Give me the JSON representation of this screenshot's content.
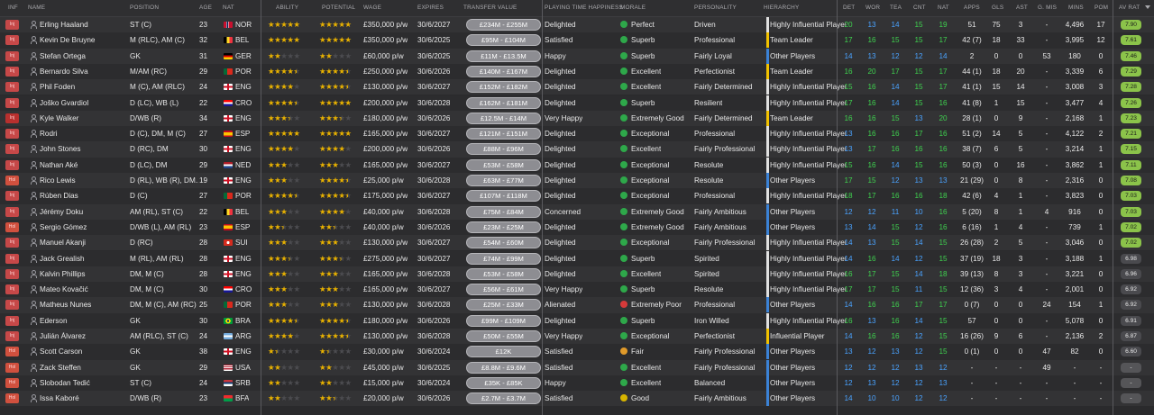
{
  "headers": {
    "inf": "INF",
    "name": "NAME",
    "position": "POSITION",
    "age": "AGE",
    "nat": "NAT",
    "ability": "ABILITY",
    "potential": "POTENTIAL",
    "wage": "WAGE",
    "expires": "EXPIRES",
    "transfer_value": "TRANSFER VALUE",
    "playing_time": "PLAYING TIME HAPPINESS",
    "morale": "MORALE",
    "personality": "PERSONALITY",
    "hierarchy": "HIERARCHY",
    "det": "DET",
    "wor": "WOR",
    "tea": "TEA",
    "cnt": "CNT",
    "nat2": "NAT",
    "apps": "APPS",
    "gls": "GLS",
    "ast": "AST",
    "gmis": "G. MIS",
    "mins": "MINS",
    "pom": "POM",
    "avrat": "AV RAT"
  },
  "colors": {
    "green_rating": "#8bc34a",
    "blue_stat": "#4aa3ff",
    "green_stat": "#3fd24f",
    "gold_star": "#e9b200",
    "bar_white": "#e0e0e0",
    "bar_yellow": "#f2c200",
    "bar_blue": "#3b82d6"
  },
  "players": [
    {
      "inf": "Inj",
      "name": "Erling Haaland",
      "position": "ST (C)",
      "age": "23",
      "nat": "NOR",
      "ability": 5,
      "potential": 5,
      "wage": "£350,000 p/w",
      "expires": "30/6/2027",
      "value": "£234M - £255M",
      "happiness": "Delighted",
      "morale": "Perfect",
      "personality": "Driven",
      "hierarchy": "Highly Influential Player",
      "hcolor": "white",
      "det": "20",
      "wor": "13",
      "tea": "14",
      "cnt": "15",
      "nat2": "19",
      "apps": "51",
      "gls": "75",
      "ast": "3",
      "gmis": "-",
      "mins": "4,496",
      "pom": "17",
      "avrat": "7.90"
    },
    {
      "inf": "Inj",
      "name": "Kevin De Bruyne",
      "position": "M (RLC), AM (C)",
      "age": "32",
      "nat": "BEL",
      "ability": 5,
      "potential": 5,
      "wage": "£350,000 p/w",
      "expires": "30/6/2025",
      "value": "£95M - £104M",
      "happiness": "Satisfied",
      "morale": "Superb",
      "personality": "Professional",
      "hierarchy": "Team Leader",
      "hcolor": "yellow",
      "det": "17",
      "wor": "16",
      "tea": "15",
      "cnt": "15",
      "nat2": "17",
      "apps": "42 (7)",
      "gls": "18",
      "ast": "33",
      "gmis": "-",
      "mins": "3,995",
      "pom": "12",
      "avrat": "7.61"
    },
    {
      "inf": "Inj",
      "name": "Stefan Ortega",
      "position": "GK",
      "age": "31",
      "nat": "GER",
      "ability": 2,
      "potential": 2,
      "wage": "£60,000 p/w",
      "expires": "30/6/2025",
      "value": "£11M - £13.5M",
      "happiness": "Happy",
      "morale": "Superb",
      "personality": "Fairly Loyal",
      "hierarchy": "Other Players",
      "hcolor": "blue",
      "det": "14",
      "wor": "13",
      "tea": "12",
      "cnt": "12",
      "nat2": "14",
      "apps": "2",
      "gls": "0",
      "ast": "0",
      "gmis": "53",
      "mins": "180",
      "pom": "0",
      "avrat": "7.46"
    },
    {
      "inf": "Inj",
      "name": "Bernardo Silva",
      "position": "M/AM (RC)",
      "age": "29",
      "nat": "POR",
      "ability": 4.5,
      "potential": 4.5,
      "wage": "£250,000 p/w",
      "expires": "30/6/2026",
      "value": "£140M - £167M",
      "happiness": "Delighted",
      "morale": "Excellent",
      "personality": "Perfectionist",
      "hierarchy": "Team Leader",
      "hcolor": "yellow",
      "det": "16",
      "wor": "20",
      "tea": "17",
      "cnt": "15",
      "nat2": "17",
      "apps": "44 (1)",
      "gls": "18",
      "ast": "20",
      "gmis": "-",
      "mins": "3,339",
      "pom": "6",
      "avrat": "7.29"
    },
    {
      "inf": "Inj",
      "name": "Phil Foden",
      "position": "M (C), AM (RLC)",
      "age": "24",
      "nat": "ENG",
      "ability": 4,
      "potential": 4.5,
      "wage": "£130,000 p/w",
      "expires": "30/6/2027",
      "value": "£152M - £182M",
      "happiness": "Delighted",
      "morale": "Excellent",
      "personality": "Fairly Determined",
      "hierarchy": "Highly Influential Player",
      "hcolor": "white",
      "det": "15",
      "wor": "16",
      "tea": "14",
      "cnt": "15",
      "nat2": "17",
      "apps": "41 (1)",
      "gls": "15",
      "ast": "14",
      "gmis": "-",
      "mins": "3,008",
      "pom": "3",
      "avrat": "7.28"
    },
    {
      "inf": "Inj",
      "name": "Joško Gvardiol",
      "position": "D (LC), WB (L)",
      "age": "22",
      "nat": "CRO",
      "ability": 4.5,
      "potential": 5,
      "wage": "£200,000 p/w",
      "expires": "30/6/2028",
      "value": "£162M - £181M",
      "happiness": "Delighted",
      "morale": "Superb",
      "personality": "Resilient",
      "hierarchy": "Highly Influential Player",
      "hcolor": "white",
      "det": "17",
      "wor": "16",
      "tea": "14",
      "cnt": "15",
      "nat2": "16",
      "apps": "41 (8)",
      "gls": "1",
      "ast": "15",
      "gmis": "-",
      "mins": "3,477",
      "pom": "4",
      "avrat": "7.26"
    },
    {
      "inf": "Inj",
      "name": "Kyle Walker",
      "position": "D/WB (R)",
      "age": "34",
      "nat": "ENG",
      "ability": 3.5,
      "potential": 3.5,
      "wage": "£180,000 p/w",
      "expires": "30/6/2026",
      "value": "£12.5M - £14M",
      "happiness": "Very Happy",
      "morale": "Extremely Good",
      "personality": "Fairly Determined",
      "hierarchy": "Team Leader",
      "hcolor": "yellow",
      "det": "16",
      "wor": "16",
      "tea": "15",
      "cnt": "13",
      "nat2": "20",
      "apps": "28 (1)",
      "gls": "0",
      "ast": "9",
      "gmis": "-",
      "mins": "2,168",
      "pom": "1",
      "avrat": "7.23"
    },
    {
      "inf": "Inj",
      "name": "Rodri",
      "position": "D (C), DM, M (C)",
      "age": "27",
      "nat": "ESP",
      "ability": 5,
      "potential": 5,
      "wage": "£165,000 p/w",
      "expires": "30/6/2027",
      "value": "£121M - £151M",
      "happiness": "Delighted",
      "morale": "Exceptional",
      "personality": "Professional",
      "hierarchy": "Highly Influential Player",
      "hcolor": "white",
      "det": "13",
      "wor": "16",
      "tea": "16",
      "cnt": "17",
      "nat2": "16",
      "apps": "51 (2)",
      "gls": "14",
      "ast": "5",
      "gmis": "-",
      "mins": "4,122",
      "pom": "2",
      "avrat": "7.21"
    },
    {
      "inf": "Inj",
      "name": "John Stones",
      "position": "D (RC), DM",
      "age": "30",
      "nat": "ENG",
      "ability": 4,
      "potential": 4,
      "wage": "£200,000 p/w",
      "expires": "30/6/2026",
      "value": "£88M - £96M",
      "happiness": "Delighted",
      "morale": "Excellent",
      "personality": "Fairly Professional",
      "hierarchy": "Highly Influential Player",
      "hcolor": "white",
      "det": "13",
      "wor": "17",
      "tea": "16",
      "cnt": "16",
      "nat2": "16",
      "apps": "38 (7)",
      "gls": "6",
      "ast": "5",
      "gmis": "-",
      "mins": "3,214",
      "pom": "1",
      "avrat": "7.15"
    },
    {
      "inf": "Inj",
      "name": "Nathan Aké",
      "position": "D (LC), DM",
      "age": "29",
      "nat": "NED",
      "ability": 3,
      "potential": 3,
      "wage": "£165,000 p/w",
      "expires": "30/6/2027",
      "value": "£53M - £58M",
      "happiness": "Delighted",
      "morale": "Exceptional",
      "personality": "Resolute",
      "hierarchy": "Highly Influential Player",
      "hcolor": "white",
      "det": "15",
      "wor": "16",
      "tea": "14",
      "cnt": "15",
      "nat2": "16",
      "apps": "50 (3)",
      "gls": "0",
      "ast": "16",
      "gmis": "-",
      "mins": "3,862",
      "pom": "1",
      "avrat": "7.11"
    },
    {
      "inf": "Hol",
      "name": "Rico Lewis",
      "position": "D (RL), WB (R), DM...",
      "age": "19",
      "nat": "ENG",
      "ability": 3,
      "potential": 4.5,
      "wage": "£25,000 p/w",
      "expires": "30/6/2028",
      "value": "£63M - £77M",
      "happiness": "Delighted",
      "morale": "Exceptional",
      "personality": "Resolute",
      "hierarchy": "Other Players",
      "hcolor": "blue",
      "det": "17",
      "wor": "15",
      "tea": "12",
      "cnt": "13",
      "nat2": "13",
      "apps": "21 (29)",
      "gls": "0",
      "ast": "8",
      "gmis": "-",
      "mins": "2,316",
      "pom": "0",
      "avrat": "7.08"
    },
    {
      "inf": "Inj",
      "name": "Rúben Dias",
      "position": "D (C)",
      "age": "27",
      "nat": "POR",
      "ability": 4.5,
      "potential": 4.5,
      "wage": "£175,000 p/w",
      "expires": "30/6/2027",
      "value": "£107M - £118M",
      "happiness": "Delighted",
      "morale": "Exceptional",
      "personality": "Professional",
      "hierarchy": "Highly Influential Player",
      "hcolor": "white",
      "det": "18",
      "wor": "17",
      "tea": "16",
      "cnt": "16",
      "nat2": "18",
      "apps": "42 (6)",
      "gls": "4",
      "ast": "1",
      "gmis": "-",
      "mins": "3,823",
      "pom": "0",
      "avrat": "7.03"
    },
    {
      "inf": "Inj",
      "name": "Jérémy Doku",
      "position": "AM (RL), ST (C)",
      "age": "22",
      "nat": "BEL",
      "ability": 3,
      "potential": 4,
      "wage": "£40,000 p/w",
      "expires": "30/6/2028",
      "value": "£75M - £84M",
      "happiness": "Concerned",
      "morale": "Extremely Good",
      "personality": "Fairly Ambitious",
      "hierarchy": "Other Players",
      "hcolor": "blue",
      "det": "12",
      "wor": "12",
      "tea": "11",
      "cnt": "10",
      "nat2": "16",
      "apps": "5 (20)",
      "gls": "8",
      "ast": "1",
      "gmis": "4",
      "mins": "916",
      "pom": "0",
      "avrat": "7.03"
    },
    {
      "inf": "Hol",
      "name": "Sergio Gómez",
      "position": "D/WB (L), AM (RL)",
      "age": "23",
      "nat": "ESP",
      "ability": 2.5,
      "potential": 2.5,
      "wage": "£40,000 p/w",
      "expires": "30/6/2026",
      "value": "£23M - £25M",
      "happiness": "Delighted",
      "morale": "Extremely Good",
      "personality": "Fairly Ambitious",
      "hierarchy": "Other Players",
      "hcolor": "blue",
      "det": "13",
      "wor": "14",
      "tea": "15",
      "cnt": "12",
      "nat2": "16",
      "apps": "6 (16)",
      "gls": "1",
      "ast": "4",
      "gmis": "-",
      "mins": "739",
      "pom": "1",
      "avrat": "7.02"
    },
    {
      "inf": "Inj",
      "name": "Manuel Akanji",
      "position": "D (RC)",
      "age": "28",
      "nat": "SUI",
      "ability": 3,
      "potential": 3,
      "wage": "£130,000 p/w",
      "expires": "30/6/2027",
      "value": "£54M - £60M",
      "happiness": "Delighted",
      "morale": "Exceptional",
      "personality": "Fairly Professional",
      "hierarchy": "Highly Influential Player",
      "hcolor": "white",
      "det": "14",
      "wor": "13",
      "tea": "15",
      "cnt": "14",
      "nat2": "15",
      "apps": "26 (28)",
      "gls": "2",
      "ast": "5",
      "gmis": "-",
      "mins": "3,046",
      "pom": "0",
      "avrat": "7.02"
    },
    {
      "inf": "Inj",
      "name": "Jack Grealish",
      "position": "M (RL), AM (RL)",
      "age": "28",
      "nat": "ENG",
      "ability": 3.5,
      "potential": 3.5,
      "wage": "£275,000 p/w",
      "expires": "30/6/2027",
      "value": "£74M - £99M",
      "happiness": "Delighted",
      "morale": "Superb",
      "personality": "Spirited",
      "hierarchy": "Highly Influential Player",
      "hcolor": "white",
      "det": "14",
      "wor": "16",
      "tea": "14",
      "cnt": "12",
      "nat2": "15",
      "apps": "37 (19)",
      "gls": "18",
      "ast": "3",
      "gmis": "-",
      "mins": "3,188",
      "pom": "1",
      "avrat": "6.98"
    },
    {
      "inf": "Inj",
      "name": "Kalvin Phillips",
      "position": "DM, M (C)",
      "age": "28",
      "nat": "ENG",
      "ability": 3,
      "potential": 3,
      "wage": "£165,000 p/w",
      "expires": "30/6/2028",
      "value": "£53M - £58M",
      "happiness": "Delighted",
      "morale": "Excellent",
      "personality": "Spirited",
      "hierarchy": "Highly Influential Player",
      "hcolor": "white",
      "det": "16",
      "wor": "17",
      "tea": "15",
      "cnt": "14",
      "nat2": "18",
      "apps": "39 (13)",
      "gls": "8",
      "ast": "3",
      "gmis": "-",
      "mins": "3,221",
      "pom": "0",
      "avrat": "6.96"
    },
    {
      "inf": "Inj",
      "name": "Mateo Kovačić",
      "position": "DM, M (C)",
      "age": "30",
      "nat": "CRO",
      "ability": 3,
      "potential": 3,
      "wage": "£165,000 p/w",
      "expires": "30/6/2027",
      "value": "£56M - £61M",
      "happiness": "Very Happy",
      "morale": "Superb",
      "personality": "Resolute",
      "hierarchy": "Highly Influential Player",
      "hcolor": "white",
      "det": "17",
      "wor": "17",
      "tea": "15",
      "cnt": "11",
      "nat2": "15",
      "apps": "12 (36)",
      "gls": "3",
      "ast": "4",
      "gmis": "-",
      "mins": "2,001",
      "pom": "0",
      "avrat": "6.92"
    },
    {
      "inf": "Inj",
      "name": "Matheus Nunes",
      "position": "DM, M (C), AM (RC)",
      "age": "25",
      "nat": "POR",
      "ability": 3,
      "potential": 3,
      "wage": "£130,000 p/w",
      "expires": "30/6/2028",
      "value": "£25M - £33M",
      "happiness": "Alienated",
      "morale": "Extremely Poor",
      "personality": "Professional",
      "hierarchy": "Other Players",
      "hcolor": "blue",
      "det": "14",
      "wor": "16",
      "tea": "16",
      "cnt": "17",
      "nat2": "17",
      "apps": "0 (7)",
      "gls": "0",
      "ast": "0",
      "gmis": "24",
      "mins": "154",
      "pom": "1",
      "avrat": "6.92"
    },
    {
      "inf": "Inj",
      "name": "Ederson",
      "position": "GK",
      "age": "30",
      "nat": "BRA",
      "ability": 4.5,
      "potential": 4.5,
      "wage": "£180,000 p/w",
      "expires": "30/6/2026",
      "value": "£99M - £109M",
      "happiness": "Delighted",
      "morale": "Superb",
      "personality": "Iron Willed",
      "hierarchy": "Highly Influential Player",
      "hcolor": "white",
      "det": "16",
      "wor": "13",
      "tea": "16",
      "cnt": "14",
      "nat2": "15",
      "apps": "57",
      "gls": "0",
      "ast": "0",
      "gmis": "-",
      "mins": "5,078",
      "pom": "0",
      "avrat": "6.91"
    },
    {
      "inf": "Inj",
      "name": "Julián Álvarez",
      "position": "AM (RLC), ST (C)",
      "age": "24",
      "nat": "ARG",
      "ability": 4,
      "potential": 4.5,
      "wage": "£130,000 p/w",
      "expires": "30/6/2028",
      "value": "£50M - £55M",
      "happiness": "Very Happy",
      "morale": "Exceptional",
      "personality": "Perfectionist",
      "hierarchy": "Influential Player",
      "hcolor": "yellow",
      "det": "14",
      "wor": "16",
      "tea": "16",
      "cnt": "12",
      "nat2": "15",
      "apps": "16 (26)",
      "gls": "9",
      "ast": "6",
      "gmis": "-",
      "mins": "2,136",
      "pom": "2",
      "avrat": "6.87"
    },
    {
      "inf": "Hol",
      "name": "Scott Carson",
      "position": "GK",
      "age": "38",
      "nat": "ENG",
      "ability": 1.5,
      "potential": 1.5,
      "wage": "£30,000 p/w",
      "expires": "30/6/2024",
      "value": "£12K",
      "happiness": "Satisfied",
      "morale": "Fair",
      "personality": "Fairly Professional",
      "hierarchy": "Other Players",
      "hcolor": "blue",
      "det": "13",
      "wor": "12",
      "tea": "13",
      "cnt": "12",
      "nat2": "15",
      "apps": "0 (1)",
      "gls": "0",
      "ast": "0",
      "gmis": "47",
      "mins": "82",
      "pom": "0",
      "avrat": "6.60"
    },
    {
      "inf": "Hol",
      "name": "Zack Steffen",
      "position": "GK",
      "age": "29",
      "nat": "USA",
      "ability": 2,
      "potential": 2,
      "wage": "£45,000 p/w",
      "expires": "30/6/2025",
      "value": "£8.8M - £9.6M",
      "happiness": "Satisfied",
      "morale": "Excellent",
      "personality": "Fairly Professional",
      "hierarchy": "Other Players",
      "hcolor": "blue",
      "det": "12",
      "wor": "12",
      "tea": "12",
      "cnt": "13",
      "nat2": "12",
      "apps": "-",
      "gls": "-",
      "ast": "-",
      "gmis": "49",
      "mins": "-",
      "pom": "-",
      "avrat": "-"
    },
    {
      "inf": "Hol",
      "name": "Slobodan Tedić",
      "position": "ST (C)",
      "age": "24",
      "nat": "SRB",
      "ability": 2,
      "potential": 2,
      "wage": "£15,000 p/w",
      "expires": "30/6/2024",
      "value": "£35K - £85K",
      "happiness": "Happy",
      "morale": "Excellent",
      "personality": "Balanced",
      "hierarchy": "Other Players",
      "hcolor": "blue",
      "det": "12",
      "wor": "13",
      "tea": "12",
      "cnt": "12",
      "nat2": "13",
      "apps": "-",
      "gls": "-",
      "ast": "-",
      "gmis": "-",
      "mins": "-",
      "pom": "-",
      "avrat": "-"
    },
    {
      "inf": "Hol",
      "name": "Issa Kaboré",
      "position": "D/WB (R)",
      "age": "23",
      "nat": "BFA",
      "ability": 2,
      "potential": 2.5,
      "wage": "£20,000 p/w",
      "expires": "30/6/2026",
      "value": "£2.7M - £3.7M",
      "happiness": "Satisfied",
      "morale": "Good",
      "personality": "Fairly Ambitious",
      "hierarchy": "Other Players",
      "hcolor": "blue",
      "det": "14",
      "wor": "10",
      "tea": "10",
      "cnt": "12",
      "nat2": "12",
      "apps": "-",
      "gls": "-",
      "ast": "-",
      "gmis": "-",
      "mins": "-",
      "pom": "-",
      "avrat": "-"
    }
  ]
}
